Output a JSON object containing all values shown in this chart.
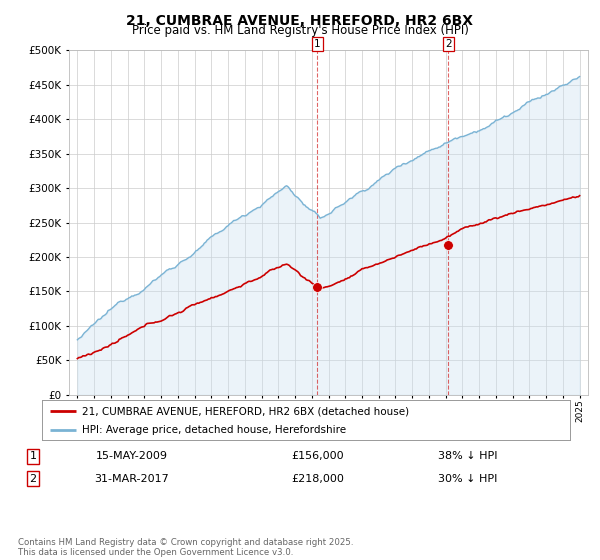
{
  "title_line1": "21, CUMBRAE AVENUE, HEREFORD, HR2 6BX",
  "title_line2": "Price paid vs. HM Land Registry's House Price Index (HPI)",
  "ylim": [
    0,
    500000
  ],
  "yticks": [
    0,
    50000,
    100000,
    150000,
    200000,
    250000,
    300000,
    350000,
    400000,
    450000,
    500000
  ],
  "hpi_color": "#7ab3d4",
  "hpi_fill_color": "#c8dff0",
  "price_color": "#cc0000",
  "marker1_price": 156000,
  "marker1_date_str": "15-MAY-2009",
  "marker1_pct": "38% ↓ HPI",
  "marker2_price": 218000,
  "marker2_date_str": "31-MAR-2017",
  "marker2_pct": "30% ↓ HPI",
  "legend_label1": "21, CUMBRAE AVENUE, HEREFORD, HR2 6BX (detached house)",
  "legend_label2": "HPI: Average price, detached house, Herefordshire",
  "footer": "Contains HM Land Registry data © Crown copyright and database right 2025.\nThis data is licensed under the Open Government Licence v3.0.",
  "background_color": "#ffffff",
  "grid_color": "#cccccc"
}
